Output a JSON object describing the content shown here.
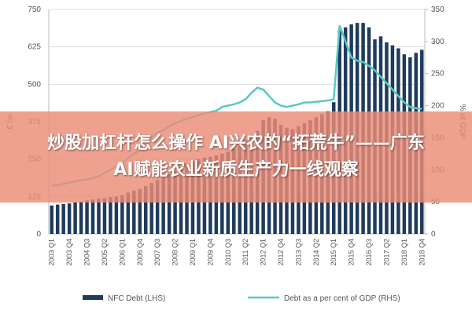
{
  "chart_data": {
    "type": "bar-line",
    "y_label": "€ bn",
    "y2_label": "% of GDP",
    "categories": [
      "2003 Q1",
      null,
      null,
      "2003 Q4",
      null,
      null,
      "2004 Q3",
      null,
      null,
      "2005 Q2",
      null,
      null,
      "2006 Q1",
      null,
      null,
      "2006 Q4",
      null,
      null,
      "2007 Q3",
      null,
      null,
      "2008 Q2",
      null,
      null,
      "2009 Q1",
      null,
      null,
      "2009 Q4",
      null,
      null,
      "2010 Q3",
      null,
      null,
      "2011 Q2",
      null,
      null,
      "2012 Q1",
      null,
      null,
      "2012 Q4",
      null,
      null,
      "2013 Q3",
      null,
      null,
      "2014 Q2",
      null,
      null,
      "2015 Q1",
      null,
      null,
      "2015 Q4",
      null,
      null,
      "2016 Q3",
      null,
      null,
      "2017 Q2",
      null,
      null,
      "2018 Q1",
      null,
      null,
      "2018 Q4"
    ],
    "series": [
      {
        "name": "NFC Debt (LHS)",
        "color": "#1f3b5c",
        "kind": "bar",
        "values": [
          95,
          98,
          100,
          102,
          105,
          108,
          112,
          115,
          118,
          120,
          123,
          125,
          130,
          138,
          145,
          150,
          160,
          170,
          180,
          190,
          200,
          210,
          225,
          235,
          245,
          250,
          255,
          258,
          262,
          268,
          275,
          285,
          300,
          315,
          330,
          345,
          380,
          390,
          385,
          365,
          355,
          350,
          360,
          370,
          380,
          390,
          400,
          410,
          440,
          680,
          690,
          700,
          705,
          705,
          690,
          650,
          660,
          640,
          630,
          620,
          600,
          590,
          605,
          615
        ]
      },
      {
        "name": "Debt as a per cent of GDP (RHS)",
        "color": "#5bc8c4",
        "kind": "line",
        "axis": "y2",
        "values": [
          75,
          76,
          78,
          80,
          82,
          84,
          85,
          87,
          90,
          95,
          100,
          105,
          110,
          118,
          125,
          130,
          140,
          150,
          158,
          162,
          168,
          172,
          176,
          180,
          182,
          185,
          188,
          190,
          192,
          198,
          200,
          202,
          205,
          210,
          220,
          228,
          225,
          215,
          205,
          200,
          198,
          200,
          202,
          205,
          205,
          206,
          207,
          208,
          210,
          325,
          300,
          275,
          270,
          268,
          262,
          255,
          245,
          235,
          225,
          215,
          205,
          198,
          196,
          195
        ]
      }
    ],
    "ylim": [
      0,
      750
    ],
    "yticks": [
      0,
      125,
      250,
      375,
      500,
      625,
      750
    ],
    "y2lim": [
      0,
      350
    ],
    "y2ticks": [
      0,
      50,
      100,
      150,
      200,
      250,
      300,
      350
    ],
    "grid": true
  },
  "banner": {
    "lines": [
      "炒股加杠杆怎么操作 AI兴农的“拓荒牛”——广东",
      "AI赋能农业新质生产力一线观察"
    ]
  }
}
